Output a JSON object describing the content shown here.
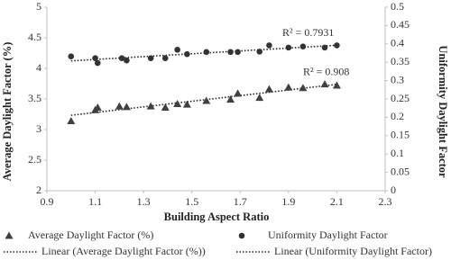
{
  "chart_data": {
    "type": "scatter",
    "x_label": "Building Aspect Ratio",
    "y_label": "Average Daylight Factor (%)",
    "y2_label": "Uniformity Daylight Factor",
    "xlim": [
      0.9,
      2.3
    ],
    "xticks": [
      0.9,
      1.1,
      1.3,
      1.5,
      1.7,
      1.9,
      2.1,
      2.3
    ],
    "ylim": [
      2,
      5
    ],
    "yticks": [
      2,
      2.5,
      3,
      3.5,
      4,
      4.5,
      5
    ],
    "y2lim": [
      0,
      0.5
    ],
    "y2ticks": [
      0,
      0.05,
      0.1,
      0.15,
      0.2,
      0.25,
      0.3,
      0.35,
      0.4,
      0.45,
      0.5
    ],
    "series": [
      {
        "name": "Average Daylight Factor (%)",
        "marker": "triangle",
        "color": "#404040",
        "trendline_name": "Linear (Average Daylight Factor (%))",
        "r2_label": "R² = 0.908",
        "x": [
          1.0,
          1.1,
          1.11,
          1.2,
          1.23,
          1.33,
          1.39,
          1.44,
          1.48,
          1.56,
          1.66,
          1.69,
          1.78,
          1.82,
          1.9,
          1.96,
          2.05,
          2.1
        ],
        "values": [
          3.14,
          3.32,
          3.36,
          3.38,
          3.37,
          3.38,
          3.36,
          3.42,
          3.41,
          3.47,
          3.49,
          3.59,
          3.52,
          3.66,
          3.69,
          3.68,
          3.74,
          3.72
        ]
      },
      {
        "name": "Uniformity Daylight Factor",
        "marker": "circle",
        "color": "#333333",
        "axis": "y2",
        "trendline_name": "Linear (Uniformity Daylight Factor)",
        "r2_label": "R² = 0.7931",
        "x": [
          1.0,
          1.1,
          1.11,
          1.21,
          1.23,
          1.33,
          1.39,
          1.44,
          1.48,
          1.56,
          1.66,
          1.69,
          1.78,
          1.82,
          1.9,
          1.96,
          2.05,
          2.1
        ],
        "values": [
          0.366,
          0.361,
          0.348,
          0.361,
          0.355,
          0.361,
          0.361,
          0.384,
          0.372,
          0.378,
          0.378,
          0.378,
          0.379,
          0.396,
          0.39,
          0.393,
          0.39,
          0.396
        ]
      }
    ]
  }
}
